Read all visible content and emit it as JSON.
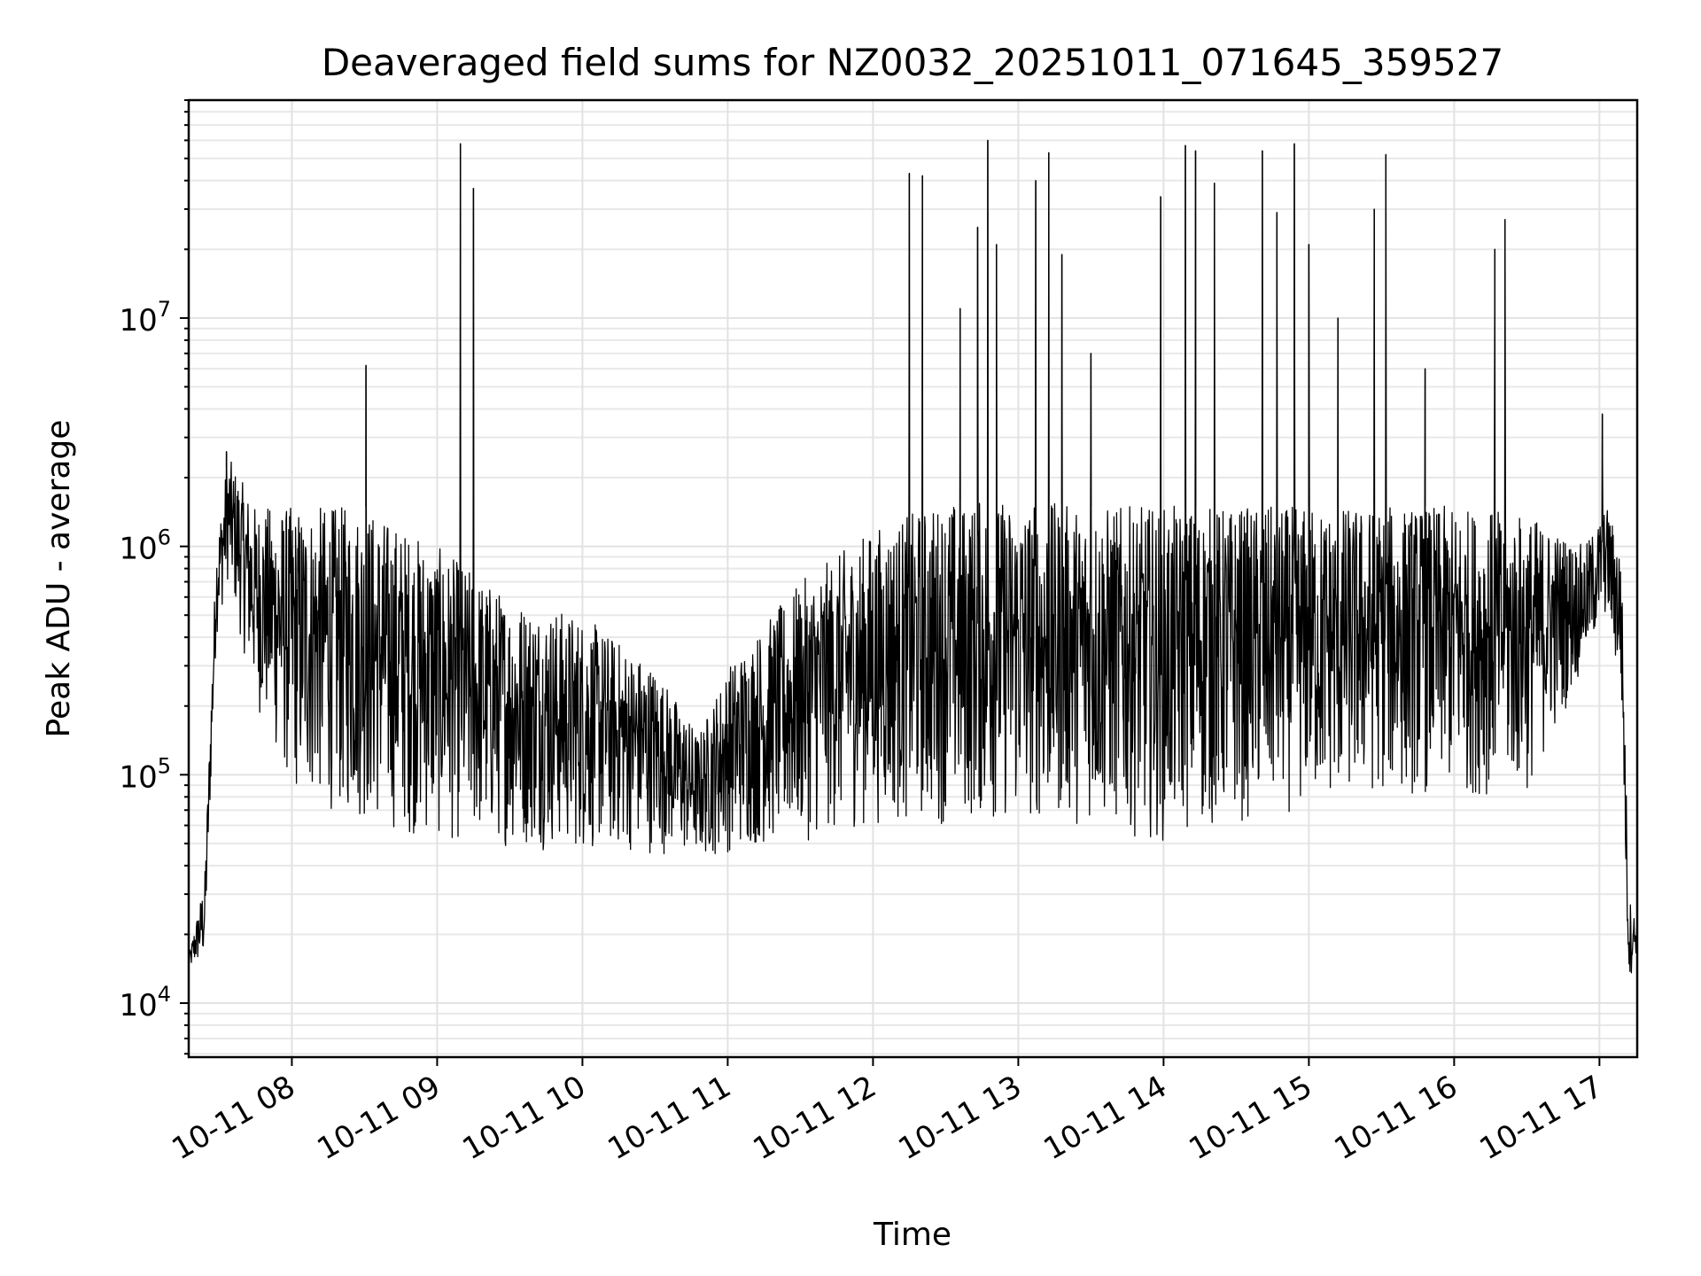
{
  "chart_data": {
    "type": "line",
    "title": "Deaveraged field sums for NZ0032_20251011_071645_359527",
    "xlabel": "Time",
    "ylabel": "Peak ADU - average",
    "yscale": "log",
    "ylim": [
      5800,
      90000000
    ],
    "xlim_hours": [
      7.29,
      17.26
    ],
    "grid": true,
    "line_color": "#000000",
    "x_ticks": [
      {
        "hour": 8,
        "label": "10-11 08"
      },
      {
        "hour": 9,
        "label": "10-11 09"
      },
      {
        "hour": 10,
        "label": "10-11 10"
      },
      {
        "hour": 11,
        "label": "10-11 11"
      },
      {
        "hour": 12,
        "label": "10-11 12"
      },
      {
        "hour": 13,
        "label": "10-11 13"
      },
      {
        "hour": 14,
        "label": "10-11 14"
      },
      {
        "hour": 15,
        "label": "10-11 15"
      },
      {
        "hour": 16,
        "label": "10-11 16"
      },
      {
        "hour": 17,
        "label": "10-11 17"
      }
    ],
    "y_ticks": [
      {
        "value": 10000,
        "base": "10",
        "exp": "4"
      },
      {
        "value": 100000,
        "base": "10",
        "exp": "5"
      },
      {
        "value": 1000000,
        "base": "10",
        "exp": "6"
      },
      {
        "value": 10000000,
        "base": "10",
        "exp": "7"
      }
    ],
    "series": [
      {
        "name": "deaveraged field sum",
        "envelope": [
          {
            "hour": 7.29,
            "low": 14000,
            "high": 16000
          },
          {
            "hour": 7.4,
            "low": 15000,
            "high": 35000
          },
          {
            "hour": 7.48,
            "low": 400000,
            "high": 1000000
          },
          {
            "hour": 7.56,
            "low": 700000,
            "high": 2500000
          },
          {
            "hour": 7.75,
            "low": 200000,
            "high": 1500000
          },
          {
            "hour": 8.0,
            "low": 80000,
            "high": 1500000
          },
          {
            "hour": 8.5,
            "low": 60000,
            "high": 1500000
          },
          {
            "hour": 9.0,
            "low": 50000,
            "high": 1000000
          },
          {
            "hour": 9.5,
            "low": 48000,
            "high": 600000
          },
          {
            "hour": 10.0,
            "low": 45000,
            "high": 500000
          },
          {
            "hour": 10.5,
            "low": 45000,
            "high": 300000
          },
          {
            "hour": 10.8,
            "low": 42000,
            "high": 150000
          },
          {
            "hour": 11.0,
            "low": 45000,
            "high": 300000
          },
          {
            "hour": 11.5,
            "low": 50000,
            "high": 700000
          },
          {
            "hour": 12.0,
            "low": 60000,
            "high": 1200000
          },
          {
            "hour": 12.5,
            "low": 60000,
            "high": 1600000
          },
          {
            "hour": 13.0,
            "low": 60000,
            "high": 1600000
          },
          {
            "hour": 13.5,
            "low": 60000,
            "high": 1500000
          },
          {
            "hour": 14.0,
            "low": 50000,
            "high": 1500000
          },
          {
            "hour": 14.5,
            "low": 60000,
            "high": 1500000
          },
          {
            "hour": 15.0,
            "low": 70000,
            "high": 1500000
          },
          {
            "hour": 15.5,
            "low": 80000,
            "high": 1500000
          },
          {
            "hour": 16.0,
            "low": 80000,
            "high": 1500000
          },
          {
            "hour": 16.5,
            "low": 80000,
            "high": 1400000
          },
          {
            "hour": 16.9,
            "low": 300000,
            "high": 1000000
          },
          {
            "hour": 17.05,
            "low": 500000,
            "high": 1500000
          },
          {
            "hour": 17.15,
            "low": 200000,
            "high": 1000000
          },
          {
            "hour": 17.2,
            "low": 12000,
            "high": 30000
          },
          {
            "hour": 17.26,
            "low": 17000,
            "high": 22000
          }
        ],
        "spikes": [
          {
            "hour": 7.55,
            "value": 2600000
          },
          {
            "hour": 8.51,
            "value": 6200000
          },
          {
            "hour": 9.16,
            "value": 58000000
          },
          {
            "hour": 9.25,
            "value": 37000000
          },
          {
            "hour": 12.25,
            "value": 43000000
          },
          {
            "hour": 12.34,
            "value": 42000000
          },
          {
            "hour": 12.6,
            "value": 11000000
          },
          {
            "hour": 12.72,
            "value": 25000000
          },
          {
            "hour": 12.79,
            "value": 60000000
          },
          {
            "hour": 12.85,
            "value": 21000000
          },
          {
            "hour": 13.12,
            "value": 40000000
          },
          {
            "hour": 13.21,
            "value": 53000000
          },
          {
            "hour": 13.3,
            "value": 19000000
          },
          {
            "hour": 13.5,
            "value": 7000000
          },
          {
            "hour": 13.98,
            "value": 34000000
          },
          {
            "hour": 14.15,
            "value": 57000000
          },
          {
            "hour": 14.22,
            "value": 54000000
          },
          {
            "hour": 14.35,
            "value": 39000000
          },
          {
            "hour": 14.68,
            "value": 54000000
          },
          {
            "hour": 14.78,
            "value": 29000000
          },
          {
            "hour": 14.9,
            "value": 58000000
          },
          {
            "hour": 15.0,
            "value": 21000000
          },
          {
            "hour": 15.2,
            "value": 10000000
          },
          {
            "hour": 15.45,
            "value": 30000000
          },
          {
            "hour": 15.53,
            "value": 52000000
          },
          {
            "hour": 15.8,
            "value": 6000000
          },
          {
            "hour": 16.28,
            "value": 20000000
          },
          {
            "hour": 16.35,
            "value": 27000000
          },
          {
            "hour": 17.02,
            "value": 3800000
          }
        ]
      }
    ]
  }
}
